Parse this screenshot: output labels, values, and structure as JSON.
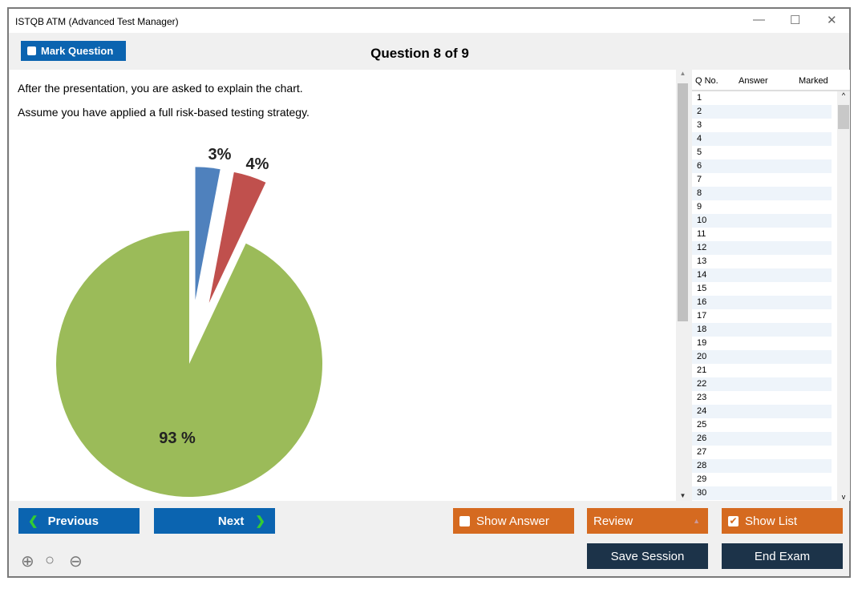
{
  "window": {
    "title": "ISTQB ATM (Advanced Test Manager)",
    "minimize": "—",
    "maximize": "☐",
    "close": "✕"
  },
  "header": {
    "mark_label": "Mark Question",
    "question_title": "Question 8 of 9"
  },
  "question": {
    "lines": [
      "After the presentation, you are asked to explain the chart.",
      "Assume you have applied a full risk-based testing strategy."
    ]
  },
  "chart_data": {
    "type": "pie",
    "slices": [
      {
        "label": "3%",
        "value": 3,
        "color": "#4f81bd",
        "exploded": true
      },
      {
        "label": "4%",
        "value": 4,
        "color": "#c0504d",
        "exploded": true
      },
      {
        "label": "93 %",
        "value": 93,
        "color": "#9bbb59",
        "exploded": false
      }
    ]
  },
  "list": {
    "headers": [
      "Q No.",
      "Answer",
      "Marked"
    ],
    "rows": [
      "1",
      "2",
      "3",
      "4",
      "5",
      "6",
      "7",
      "8",
      "9",
      "10",
      "11",
      "12",
      "13",
      "14",
      "15",
      "16",
      "17",
      "18",
      "19",
      "20",
      "21",
      "22",
      "23",
      "24",
      "25",
      "26",
      "27",
      "28",
      "29",
      "30"
    ]
  },
  "footer": {
    "previous": "Previous",
    "next": "Next",
    "show_answer": "Show Answer",
    "review": "Review",
    "show_list": "Show List",
    "save_session": "Save Session",
    "end_exam": "End Exam"
  }
}
